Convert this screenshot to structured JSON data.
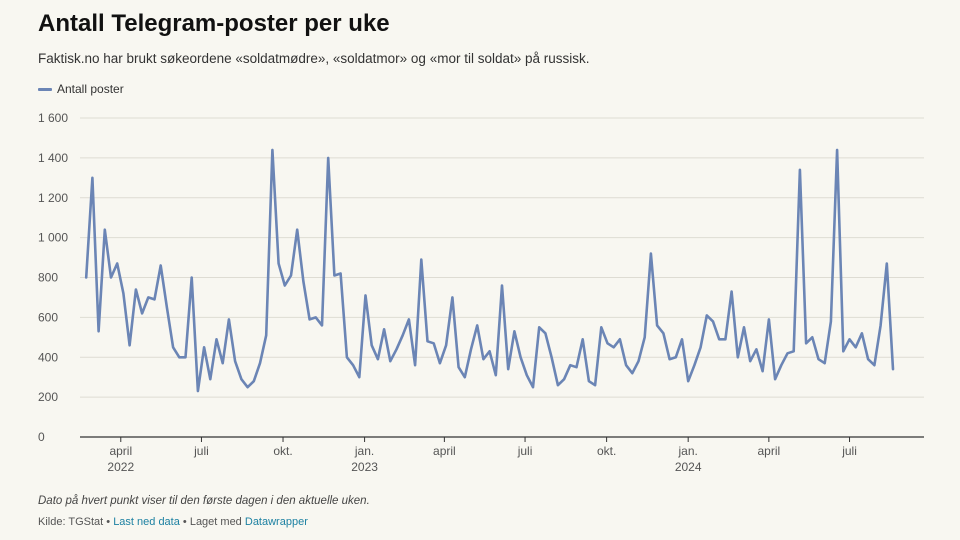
{
  "title": "Antall Telegram-poster per uke",
  "subtitle": "Faktisk.no har brukt søkeordene «soldatmødre», «soldatmor» og «mor til soldat» på russisk.",
  "note": "Dato på hvert punkt viser til den første dagen i den aktuelle uken.",
  "source": {
    "prefix": "Kilde: TGStat",
    "sep1": " • ",
    "download_label": "Last ned data",
    "sep2": " • Laget med ",
    "tool_label": "Datawrapper"
  },
  "colors": {
    "line": "#6b85b5",
    "grid": "#dedcd3",
    "axis": "#333333"
  },
  "chart_data": {
    "type": "line",
    "legend_position": "top-left",
    "grid": true,
    "ylim": [
      0,
      1600
    ],
    "yticks": [
      0,
      200,
      400,
      600,
      800,
      1000,
      1200,
      1400,
      1600
    ],
    "ytick_labels": [
      "0",
      "200",
      "400",
      "600",
      "800",
      "1 000",
      "1 200",
      "1 400",
      "1 600"
    ],
    "xlim": [
      "2022-02-14",
      "2024-09-23"
    ],
    "xticks": [
      {
        "date": "2022-04-01",
        "label": "april",
        "year": "2022"
      },
      {
        "date": "2022-07-01",
        "label": "juli",
        "year": ""
      },
      {
        "date": "2022-10-01",
        "label": "okt.",
        "year": ""
      },
      {
        "date": "2023-01-01",
        "label": "jan.",
        "year": "2023"
      },
      {
        "date": "2023-04-01",
        "label": "april",
        "year": ""
      },
      {
        "date": "2023-07-01",
        "label": "juli",
        "year": ""
      },
      {
        "date": "2023-10-01",
        "label": "okt.",
        "year": ""
      },
      {
        "date": "2024-01-01",
        "label": "jan.",
        "year": "2024"
      },
      {
        "date": "2024-04-01",
        "label": "april",
        "year": ""
      },
      {
        "date": "2024-07-01",
        "label": "juli",
        "year": ""
      }
    ],
    "series": [
      {
        "name": "Antall poster",
        "start_date": "2022-02-21",
        "step_days": 7,
        "values": [
          800,
          1300,
          530,
          1040,
          800,
          870,
          720,
          460,
          740,
          620,
          700,
          690,
          860,
          650,
          450,
          400,
          400,
          800,
          230,
          450,
          290,
          490,
          370,
          590,
          380,
          290,
          250,
          280,
          370,
          510,
          1440,
          870,
          760,
          810,
          1040,
          780,
          590,
          600,
          560,
          1400,
          810,
          820,
          400,
          360,
          300,
          710,
          460,
          390,
          540,
          380,
          440,
          510,
          590,
          360,
          890,
          480,
          470,
          370,
          460,
          700,
          350,
          300,
          440,
          560,
          390,
          430,
          310,
          760,
          340,
          530,
          400,
          310,
          250,
          550,
          520,
          400,
          260,
          290,
          360,
          350,
          490,
          280,
          260,
          550,
          470,
          450,
          490,
          360,
          320,
          380,
          500,
          920,
          560,
          520,
          390,
          400,
          490,
          280,
          360,
          450,
          610,
          580,
          490,
          490,
          730,
          400,
          550,
          380,
          440,
          330,
          590,
          290,
          360,
          420,
          430,
          1340,
          470,
          500,
          390,
          370,
          580,
          1440,
          430,
          490,
          450,
          520,
          390,
          360,
          560,
          870,
          340
        ]
      }
    ]
  }
}
